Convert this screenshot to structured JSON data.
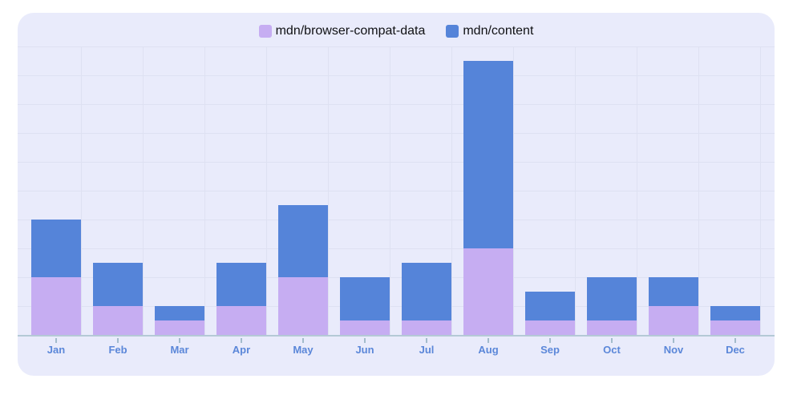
{
  "legend": {
    "items": [
      {
        "label": "mdn/browser-compat-data",
        "color": "#c6adf2"
      },
      {
        "label": "mdn/content",
        "color": "#5584d9"
      }
    ]
  },
  "chart_data": {
    "type": "bar",
    "stacked": true,
    "title": "",
    "xlabel": "",
    "ylabel": "",
    "categories": [
      "Jan",
      "Feb",
      "Mar",
      "Apr",
      "May",
      "Jun",
      "Jul",
      "Aug",
      "Sep",
      "Oct",
      "Nov",
      "Dec"
    ],
    "series": [
      {
        "name": "mdn/browser-compat-data",
        "color": "#c6adf2",
        "values": [
          4,
          2,
          1,
          2,
          4,
          1,
          1,
          6,
          1,
          1,
          2,
          1
        ]
      },
      {
        "name": "mdn/content",
        "color": "#5584d9",
        "values": [
          4,
          3,
          1,
          3,
          5,
          3,
          4,
          13,
          2,
          3,
          2,
          1
        ]
      }
    ],
    "ylim": [
      0,
      20
    ],
    "y_gridline_interval": 2,
    "y_axis_labels_visible": false,
    "grid": true,
    "legend_position": "top"
  },
  "colors": {
    "page_background": "#ffffff",
    "card_background": "#e9ebfb",
    "gridline": "#dee1f2",
    "axis_line": "#b4c9d6",
    "tick": "#a3bbcb",
    "x_label": "#5b87d9",
    "legend_text": "#101114"
  }
}
